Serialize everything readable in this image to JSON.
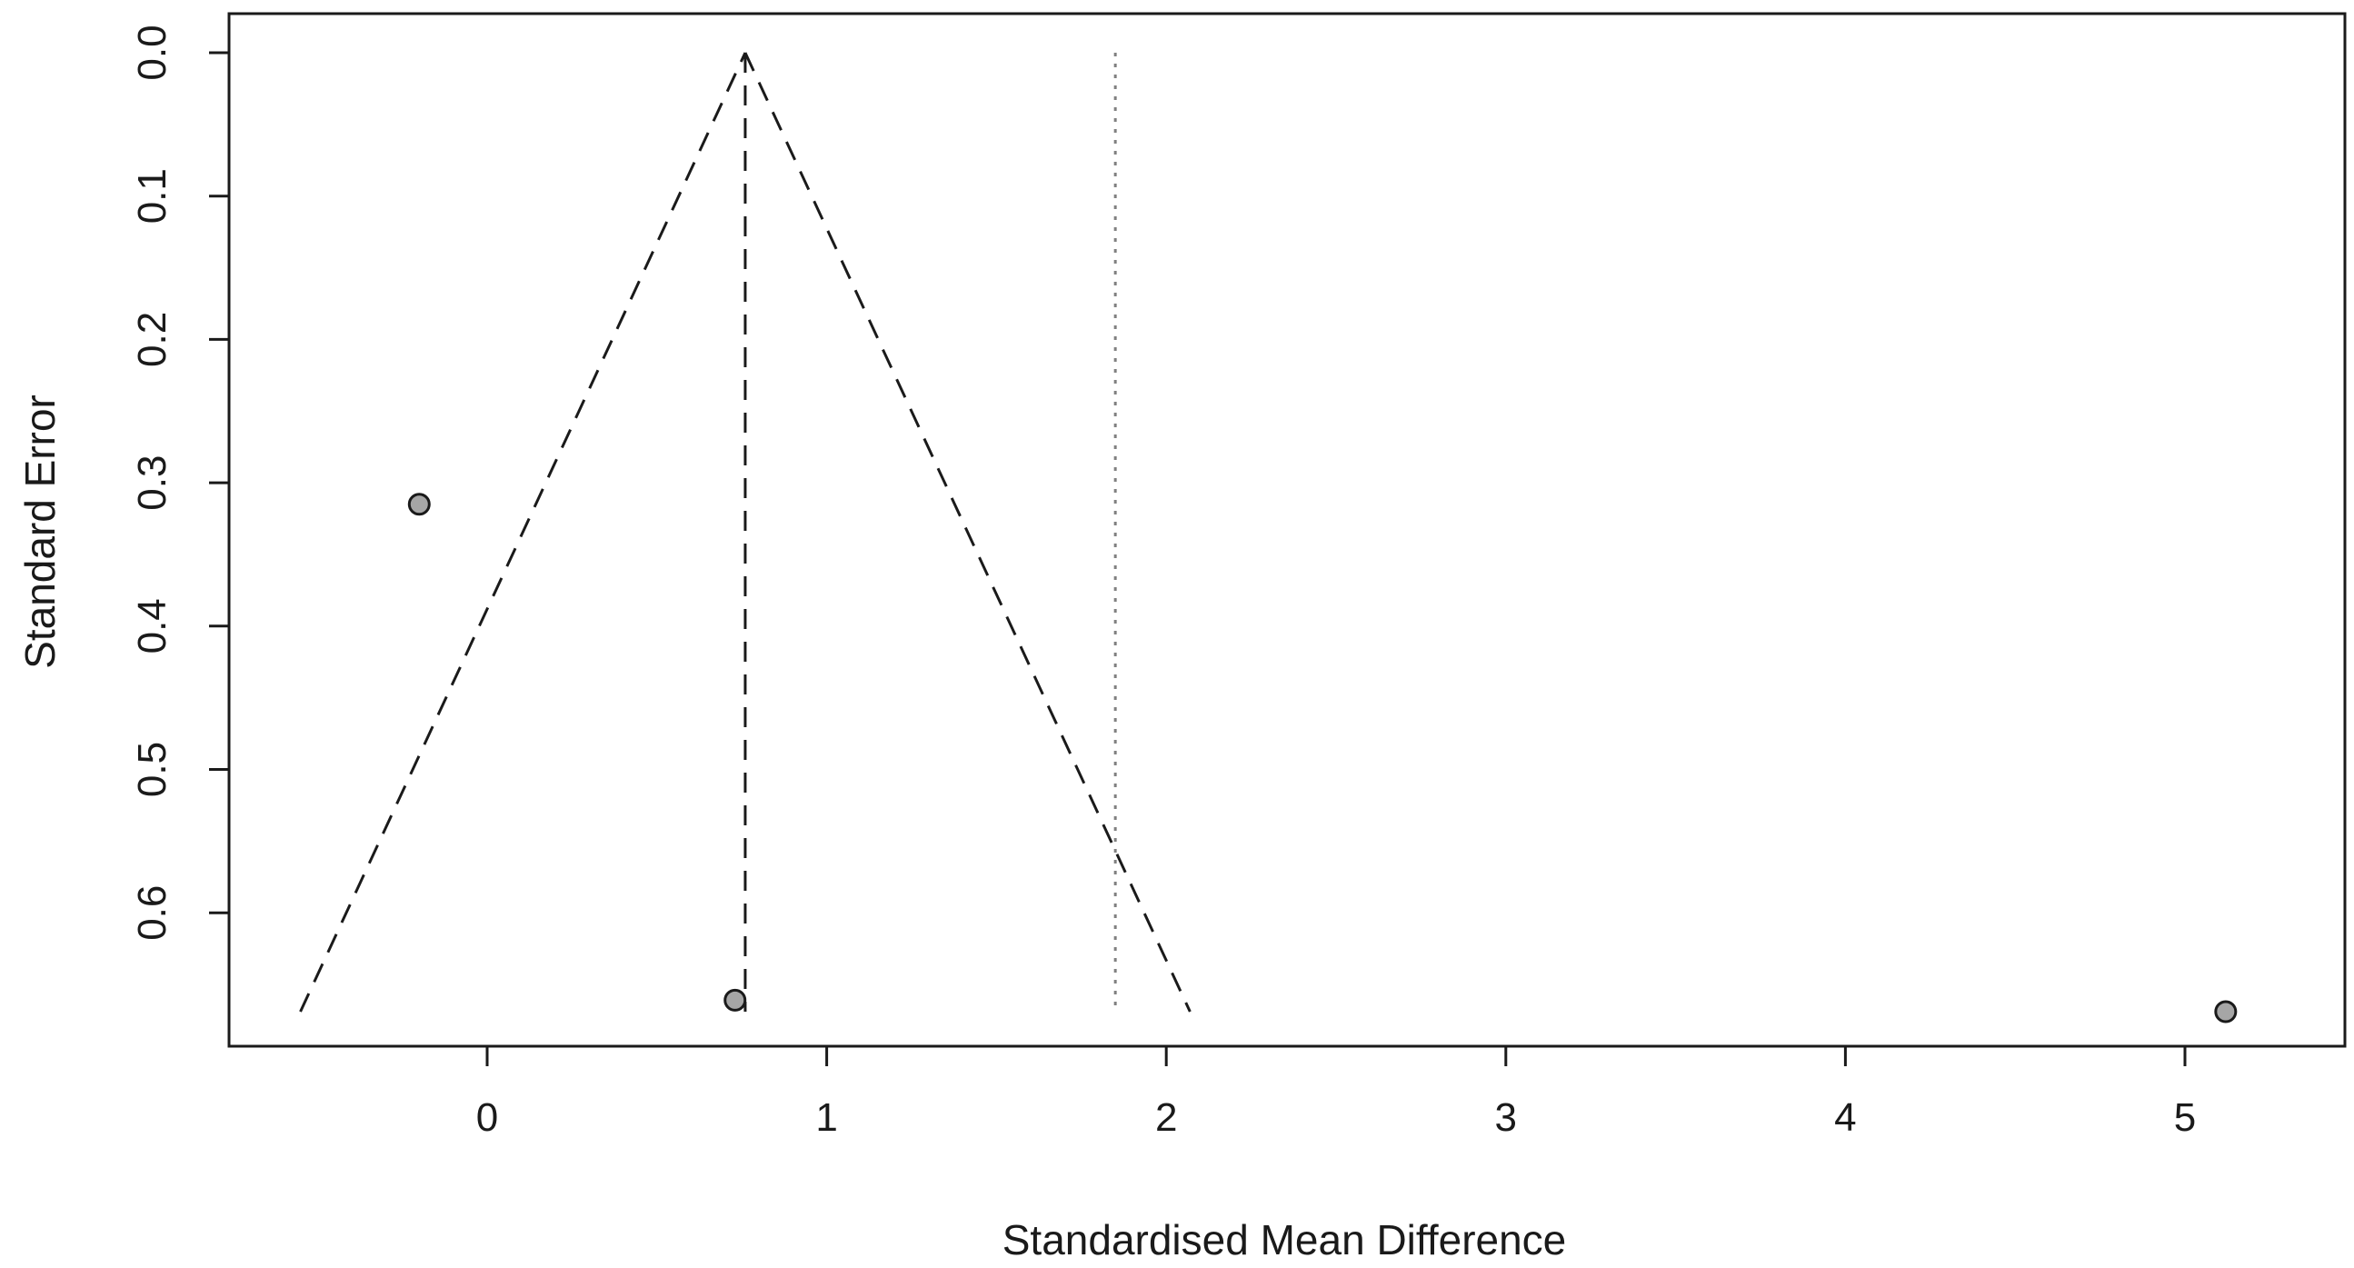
{
  "chart_data": {
    "type": "scatter",
    "subtype": "funnel",
    "title": "",
    "xlabel": "Standardised Mean Difference",
    "ylabel": "Standard Error",
    "xlim": [
      -0.77,
      5.47
    ],
    "ylim": [
      0,
      0.697
    ],
    "y_reversed": true,
    "y_tick_rotation": "vertical",
    "grid": false,
    "legend": "none",
    "x_ticks": [
      "0",
      "1",
      "2",
      "3",
      "4",
      "5"
    ],
    "y_ticks": [
      "0.0",
      "0.1",
      "0.2",
      "0.3",
      "0.4",
      "0.5",
      "0.6"
    ],
    "points": [
      {
        "x": -0.2,
        "y": 0.315
      },
      {
        "x": 0.73,
        "y": 0.661
      },
      {
        "x": 5.12,
        "y": 0.669
      }
    ],
    "pooled_estimate": 0.76,
    "funnel": {
      "apex_x": 0.76,
      "apex_y": 0,
      "base_y": 0.669,
      "left_x": -0.55,
      "right_x": 2.07
    },
    "reference_line_x": 1.85,
    "colors": {
      "point_fill": "#a6a6a6",
      "point_stroke": "#1a1a1a",
      "line": "#1a1a1a",
      "reference": "#808080"
    }
  }
}
